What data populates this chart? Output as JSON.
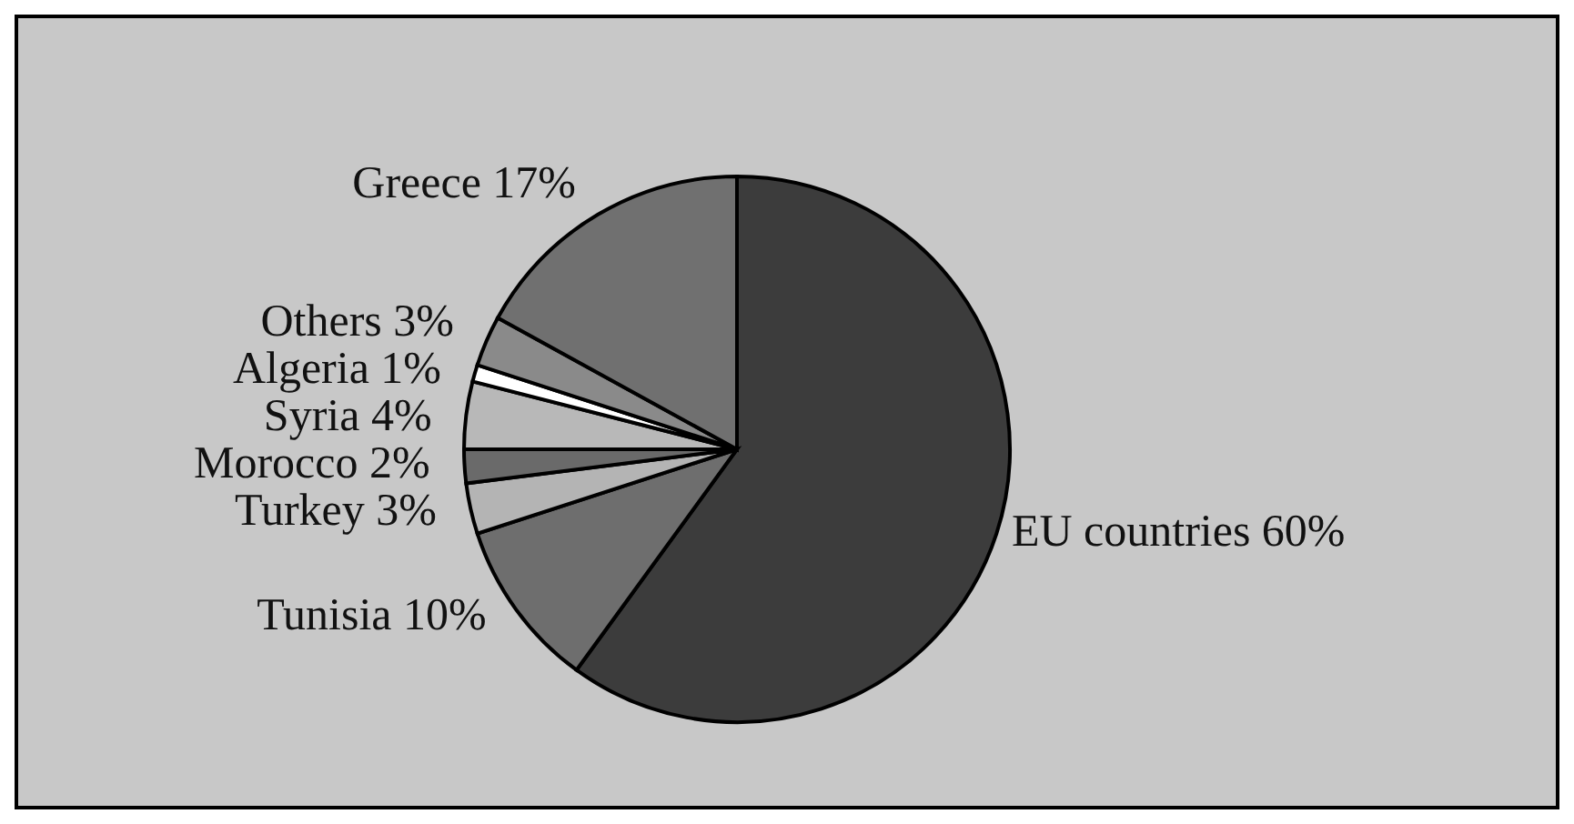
{
  "chart_data": {
    "type": "pie",
    "categories": [
      "EU countries",
      "Tunisia",
      "Turkey",
      "Morocco",
      "Syria",
      "Algeria",
      "Others",
      "Greece"
    ],
    "values": [
      60,
      10,
      3,
      2,
      4,
      1,
      3,
      17
    ],
    "value_labels": [
      "60%",
      "10%",
      "3%",
      "2%",
      "4%",
      "1%",
      "3%",
      "17%"
    ],
    "colors": [
      "#3c3c3c",
      "#6e6e6e",
      "#b4b4b4",
      "#6a6a6a",
      "#b8b8b8",
      "#ffffff",
      "#8a8a8a",
      "#707070"
    ]
  }
}
